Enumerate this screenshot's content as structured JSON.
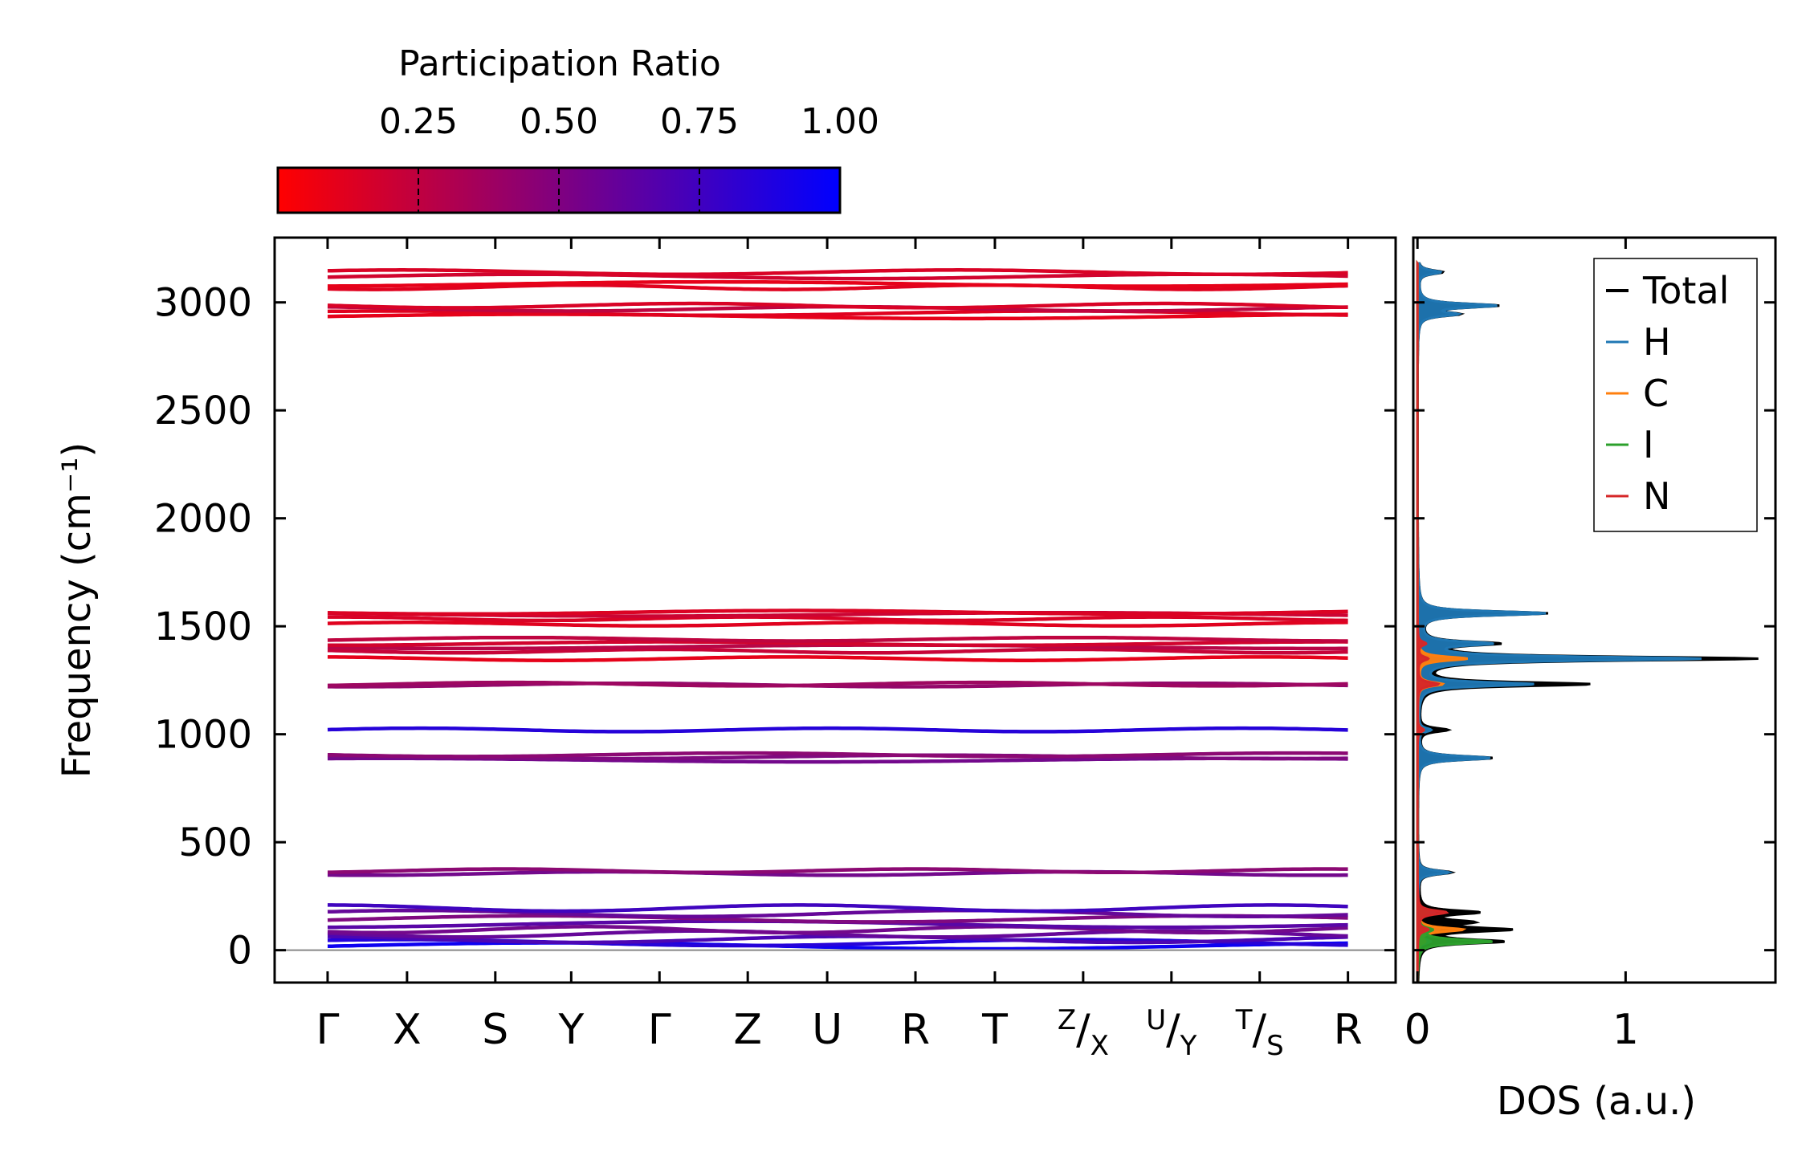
{
  "chart_data": [
    {
      "type": "line",
      "subtype": "phonon-band-structure",
      "colorbar": {
        "title": "Participation Ratio",
        "ticks": [
          0.25,
          0.5,
          0.75,
          1.0
        ],
        "tick_labels": [
          "0.25",
          "0.50",
          "0.75",
          "1.00"
        ],
        "range": [
          0.0,
          1.0
        ],
        "color_low": "#ff0000",
        "color_high": "#0000ff"
      },
      "ylabel": "Frequency (cm⁻¹)",
      "ylim": [
        -150,
        3300
      ],
      "yticks": [
        0,
        500,
        1000,
        1500,
        2000,
        2500,
        3000
      ],
      "ytick_labels": [
        "0",
        "500",
        "1000",
        "1500",
        "2000",
        "2500",
        "3000"
      ],
      "kpath": {
        "positions": [
          0,
          0.45,
          0.95,
          1.38,
          1.88,
          2.38,
          2.83,
          3.33,
          3.78,
          4.28,
          4.78,
          5.28,
          5.78
        ],
        "labels": [
          "Γ",
          "X",
          "S",
          "Y",
          "Γ",
          "Z",
          "U",
          "R",
          "T",
          "Z/X",
          "U/Y",
          "T/S",
          "R"
        ]
      },
      "xlim": [
        -0.3,
        6.05
      ],
      "zero_line": 0,
      "bands": [
        {
          "f": 2935,
          "pr": 0.1
        },
        {
          "f": 2950,
          "pr": 0.12
        },
        {
          "f": 2970,
          "pr": 0.25
        },
        {
          "f": 2985,
          "pr": 0.15
        },
        {
          "f": 3070,
          "pr": 0.12
        },
        {
          "f": 3085,
          "pr": 0.1
        },
        {
          "f": 3120,
          "pr": 0.18
        },
        {
          "f": 3140,
          "pr": 0.15
        },
        {
          "f": 1350,
          "pr": 0.1
        },
        {
          "f": 1385,
          "pr": 0.22
        },
        {
          "f": 1405,
          "pr": 0.28
        },
        {
          "f": 1420,
          "pr": 0.18
        },
        {
          "f": 1440,
          "pr": 0.25
        },
        {
          "f": 1510,
          "pr": 0.12
        },
        {
          "f": 1535,
          "pr": 0.15
        },
        {
          "f": 1555,
          "pr": 0.2
        },
        {
          "f": 1565,
          "pr": 0.14
        },
        {
          "f": 1228,
          "pr": 0.42
        },
        {
          "f": 1232,
          "pr": 0.38
        },
        {
          "f": 1020,
          "pr": 0.85
        },
        {
          "f": 880,
          "pr": 0.55
        },
        {
          "f": 895,
          "pr": 0.5
        },
        {
          "f": 905,
          "pr": 0.45
        },
        {
          "f": 355,
          "pr": 0.55
        },
        {
          "f": 368,
          "pr": 0.45
        },
        {
          "f": 20,
          "pr": 0.95
        },
        {
          "f": 35,
          "pr": 0.85
        },
        {
          "f": 50,
          "pr": 0.7
        },
        {
          "f": 75,
          "pr": 0.6
        },
        {
          "f": 95,
          "pr": 0.55
        },
        {
          "f": 120,
          "pr": 0.65
        },
        {
          "f": 145,
          "pr": 0.5
        },
        {
          "f": 170,
          "pr": 0.6
        },
        {
          "f": 195,
          "pr": 0.75
        }
      ]
    },
    {
      "type": "line",
      "subtype": "density-of-states",
      "xlabel": "DOS (a.u.)",
      "xlim": [
        -0.02,
        1.72
      ],
      "xticks": [
        0,
        1
      ],
      "xtick_labels": [
        "0",
        "1"
      ],
      "ylim": [
        -150,
        3300
      ],
      "legend": {
        "placement": "top-right",
        "entries": [
          {
            "name": "Total",
            "color": "#000000"
          },
          {
            "name": "H",
            "color": "#1f77b4"
          },
          {
            "name": "C",
            "color": "#ff7f0e"
          },
          {
            "name": "I",
            "color": "#2ca02c"
          },
          {
            "name": "N",
            "color": "#d62728"
          }
        ]
      },
      "series": [
        {
          "name": "Total",
          "peaks": [
            [
              3140,
              0.12
            ],
            [
              2985,
              0.38
            ],
            [
              2945,
              0.18
            ],
            [
              1560,
              0.62
            ],
            [
              1420,
              0.36
            ],
            [
              1350,
              1.62
            ],
            [
              1232,
              0.82
            ],
            [
              1020,
              0.14
            ],
            [
              890,
              0.36
            ],
            [
              360,
              0.16
            ],
            [
              175,
              0.28
            ],
            [
              130,
              0.22
            ],
            [
              95,
              0.42
            ],
            [
              40,
              0.4
            ]
          ]
        },
        {
          "name": "H",
          "peaks": [
            [
              3140,
              0.11
            ],
            [
              2985,
              0.37
            ],
            [
              2945,
              0.17
            ],
            [
              1560,
              0.61
            ],
            [
              1420,
              0.33
            ],
            [
              1350,
              1.35
            ],
            [
              1232,
              0.55
            ],
            [
              1020,
              0.06
            ],
            [
              890,
              0.35
            ],
            [
              360,
              0.15
            ],
            [
              175,
              0.08
            ],
            [
              95,
              0.1
            ],
            [
              40,
              0.06
            ]
          ]
        },
        {
          "name": "C",
          "peaks": [
            [
              1350,
              0.24
            ],
            [
              1232,
              0.12
            ],
            [
              1020,
              0.03
            ],
            [
              95,
              0.22
            ],
            [
              40,
              0.03
            ]
          ]
        },
        {
          "name": "I",
          "peaks": [
            [
              175,
              0.05
            ],
            [
              95,
              0.06
            ],
            [
              40,
              0.36
            ]
          ]
        },
        {
          "name": "N",
          "peaks": [
            [
              1420,
              0.04
            ],
            [
              1350,
              0.05
            ],
            [
              1232,
              0.1
            ],
            [
              1020,
              0.03
            ],
            [
              175,
              0.14
            ],
            [
              95,
              0.05
            ]
          ]
        }
      ]
    }
  ]
}
